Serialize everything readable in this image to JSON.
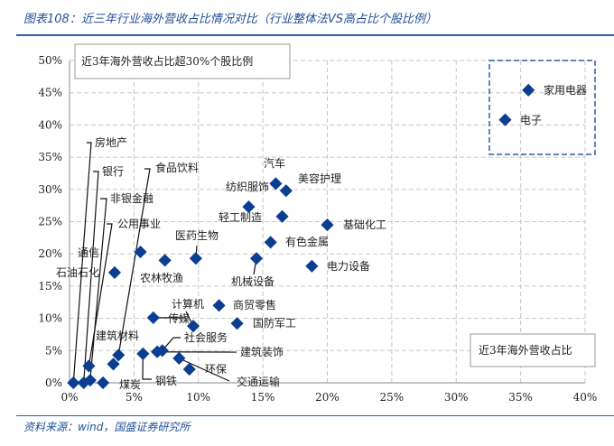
{
  "title": "图表108：近三年行业海外营收占比情况对比（行业整体法VS高占比个股比例）",
  "source": "资料来源：wind，国盛证券研究所",
  "chart_data": {
    "type": "scatter",
    "xlim": [
      0,
      40
    ],
    "ylim": [
      0,
      50
    ],
    "x_ticks": [
      "0%",
      "5%",
      "10%",
      "15%",
      "20%",
      "25%",
      "30%",
      "35%",
      "40%"
    ],
    "y_ticks": [
      "0%",
      "5%",
      "10%",
      "15%",
      "20%",
      "25%",
      "30%",
      "35%",
      "40%",
      "45%",
      "50%"
    ],
    "grid": true,
    "marker_color": "#0b3d91",
    "annotations": [
      "近3年海外营收占比超30%个股比例",
      "近3年海外营收占比"
    ],
    "points": [
      {
        "name": "房地产",
        "x": 0.3,
        "y": 0.0
      },
      {
        "name": "银行",
        "x": 1.1,
        "y": 0.0
      },
      {
        "name": "非银金融",
        "x": 1.6,
        "y": 0.4
      },
      {
        "name": "公用事业",
        "x": 1.5,
        "y": 2.6
      },
      {
        "name": "煤炭",
        "x": 2.6,
        "y": 0.0
      },
      {
        "name": "建筑材料",
        "x": 3.4,
        "y": 2.9
      },
      {
        "name": "食品饮料",
        "x": 3.8,
        "y": 4.3
      },
      {
        "name": "石油石化",
        "x": 3.5,
        "y": 17.1
      },
      {
        "name": "通信",
        "x": 5.5,
        "y": 20.3
      },
      {
        "name": "农林牧渔",
        "x": 7.4,
        "y": 19.0
      },
      {
        "name": "医药生物",
        "x": 9.8,
        "y": 19.3
      },
      {
        "name": "钢铁",
        "x": 5.7,
        "y": 4.5
      },
      {
        "name": "建筑装饰",
        "x": 6.8,
        "y": 4.8
      },
      {
        "name": "社会服务",
        "x": 7.2,
        "y": 5.0
      },
      {
        "name": "交通运输",
        "x": 8.5,
        "y": 3.8
      },
      {
        "name": "环保",
        "x": 9.3,
        "y": 2.1
      },
      {
        "name": "传媒",
        "x": 6.5,
        "y": 10.1
      },
      {
        "name": "计算机",
        "x": 9.6,
        "y": 8.8
      },
      {
        "name": "商贸零售",
        "x": 11.6,
        "y": 12.0
      },
      {
        "name": "国防军工",
        "x": 13.0,
        "y": 9.2
      },
      {
        "name": "机械设备",
        "x": 14.5,
        "y": 19.3
      },
      {
        "name": "有色金属",
        "x": 15.6,
        "y": 21.8
      },
      {
        "name": "电力设备",
        "x": 18.8,
        "y": 18.1
      },
      {
        "name": "基础化工",
        "x": 20.0,
        "y": 24.5
      },
      {
        "name": "轻工制造",
        "x": 16.5,
        "y": 25.8
      },
      {
        "name": "纺织服饰",
        "x": 13.9,
        "y": 27.3
      },
      {
        "name": "汽车",
        "x": 16.0,
        "y": 30.9
      },
      {
        "name": "美容护理",
        "x": 16.8,
        "y": 29.8
      },
      {
        "name": "家用电器",
        "x": 35.6,
        "y": 45.4
      },
      {
        "name": "电子",
        "x": 33.8,
        "y": 40.8
      }
    ]
  }
}
